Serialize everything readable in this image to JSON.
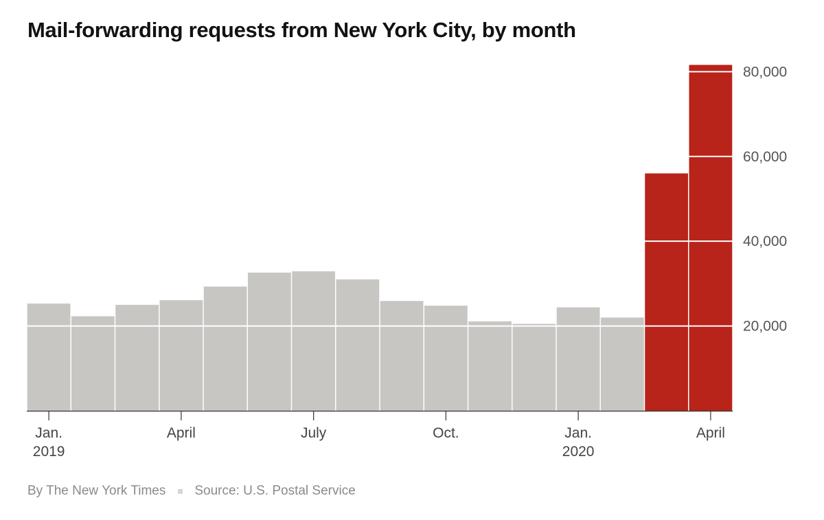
{
  "title": "Mail-forwarding requests from New York City, by month",
  "byline": "By The New York Times",
  "source": "Source: U.S. Postal Service",
  "colors": {
    "normal_bar": "#c8c6c3",
    "highlight_bar": "#b8231a",
    "gridline": "#ffffff"
  },
  "chart_data": {
    "type": "bar",
    "title": "Mail-forwarding requests from New York City, by month",
    "categories": [
      "Jan. 2019",
      "Feb. 2019",
      "Mar. 2019",
      "Apr. 2019",
      "May 2019",
      "Jun. 2019",
      "Jul. 2019",
      "Aug. 2019",
      "Sep. 2019",
      "Oct. 2019",
      "Nov. 2019",
      "Dec. 2019",
      "Jan. 2020",
      "Feb. 2020",
      "Mar. 2020",
      "Apr. 2020"
    ],
    "values": [
      25300,
      22300,
      25000,
      26100,
      29300,
      32600,
      32900,
      31000,
      25900,
      24800,
      21100,
      20500,
      24400,
      22000,
      56000,
      81600
    ],
    "highlighted": [
      false,
      false,
      false,
      false,
      false,
      false,
      false,
      false,
      false,
      false,
      false,
      false,
      false,
      false,
      true,
      true
    ],
    "ylim": [
      0,
      82000
    ],
    "yticks": [
      20000,
      40000,
      60000,
      80000
    ],
    "ytick_labels": [
      "20,000",
      "40,000",
      "60,000",
      "80,000"
    ],
    "xticks": [
      {
        "index": 0,
        "line1": "Jan.",
        "line2": "2019"
      },
      {
        "index": 3,
        "line1": "April",
        "line2": ""
      },
      {
        "index": 6,
        "line1": "July",
        "line2": ""
      },
      {
        "index": 9,
        "line1": "Oct.",
        "line2": ""
      },
      {
        "index": 12,
        "line1": "Jan.",
        "line2": "2020"
      },
      {
        "index": 15,
        "line1": "April",
        "line2": ""
      }
    ],
    "grid": true,
    "y_axis_position": "right",
    "xlabel": "",
    "ylabel": ""
  }
}
